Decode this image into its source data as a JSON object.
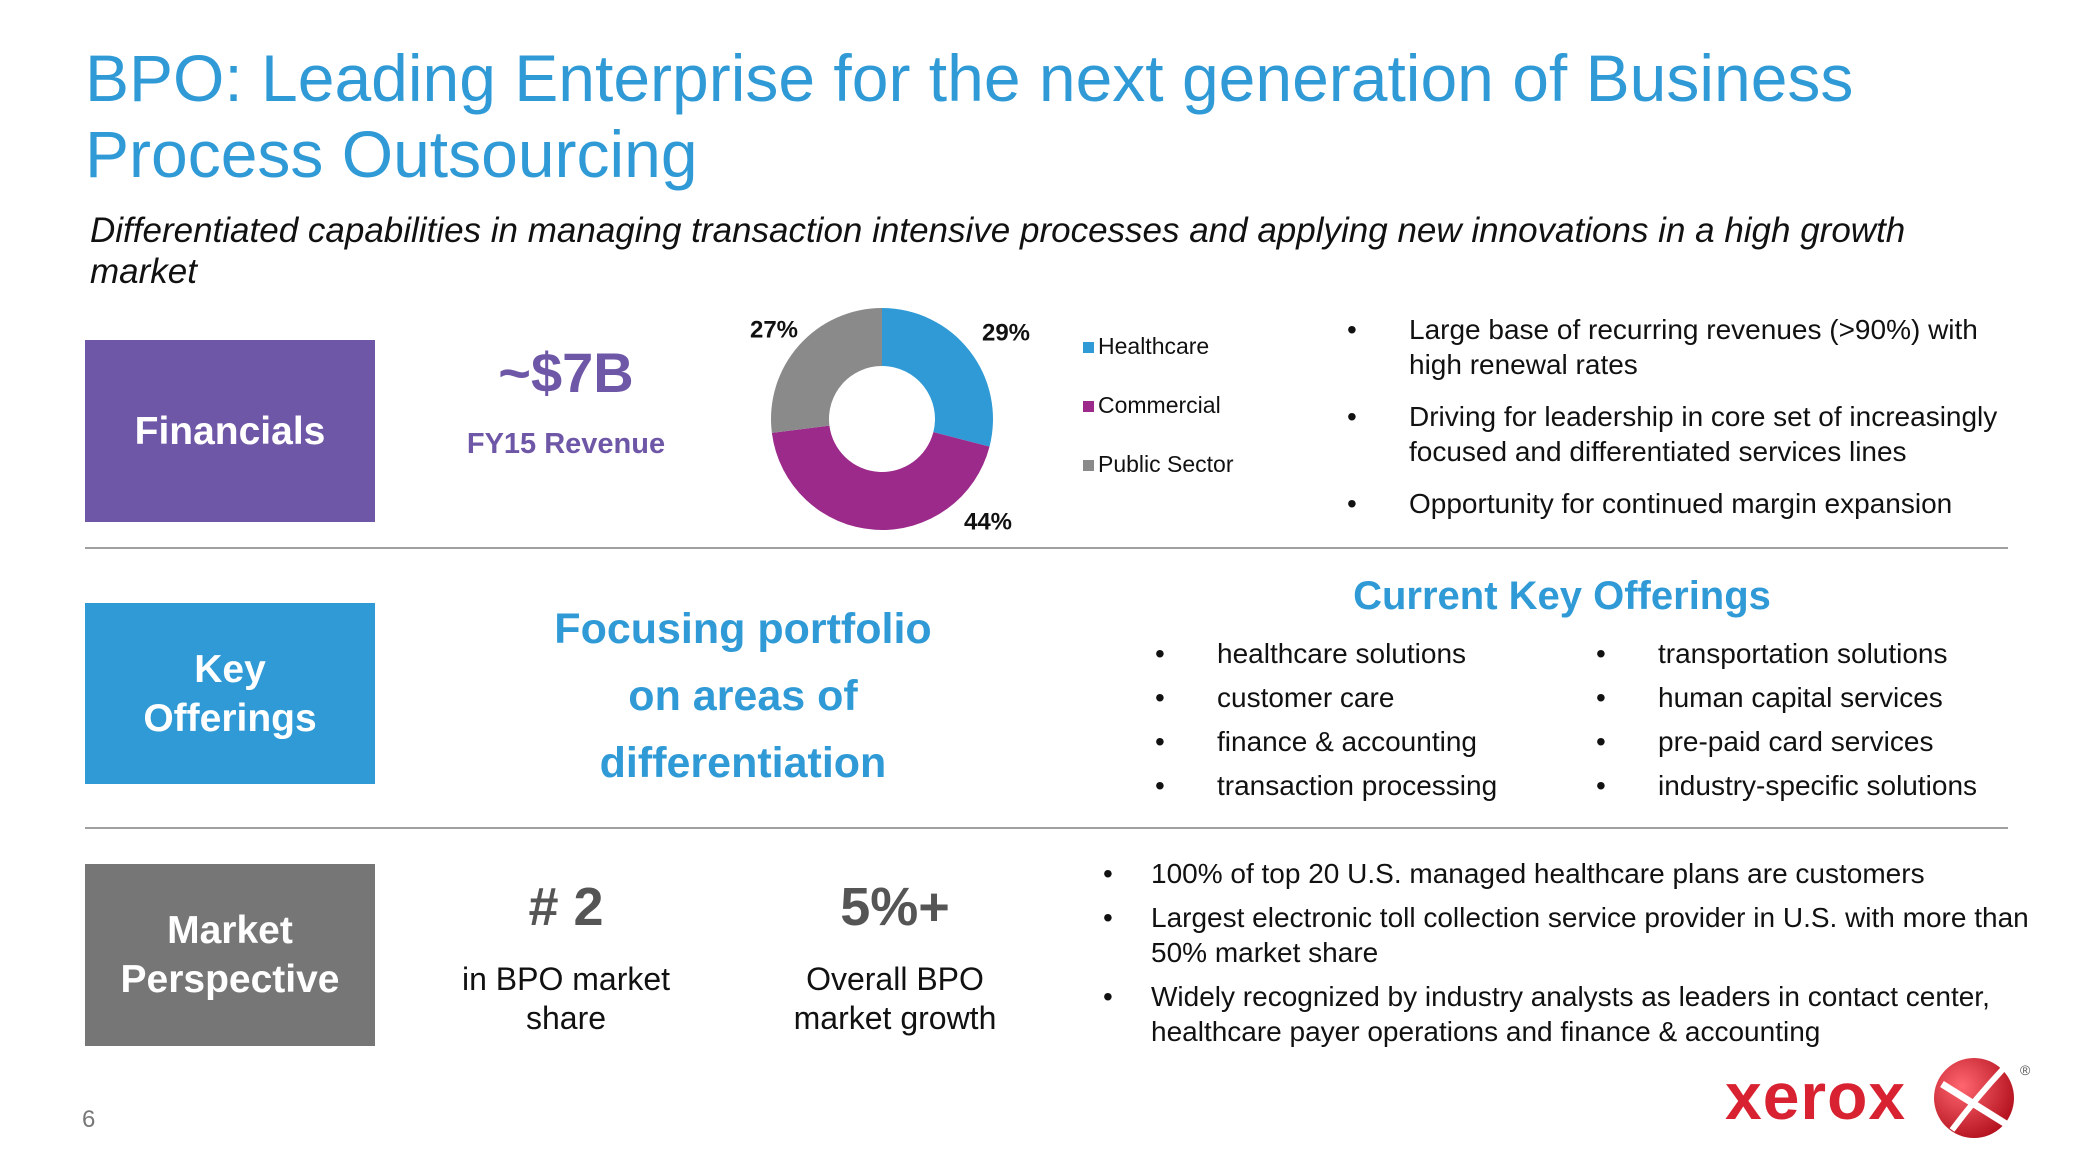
{
  "header": {
    "title": "BPO: Leading Enterprise for the next generation of Business Process Outsourcing",
    "subtitle": "Differentiated capabilities in managing transaction intensive processes and applying new innovations in a high growth market"
  },
  "sections": [
    {
      "label": "Financials"
    },
    {
      "label": "Key Offerings"
    },
    {
      "label": "Market Perspective"
    }
  ],
  "financials": {
    "figure": "~$7B",
    "caption": "FY15 Revenue",
    "bullets": [
      "Large base of recurring revenues (>90%) with high renewal rates",
      "Driving for leadership in core set of increasingly focused and differentiated services lines",
      "Opportunity for continued margin expansion"
    ]
  },
  "chart_data": {
    "type": "donut",
    "categories": [
      "Healthcare",
      "Commercial",
      "Public Sector"
    ],
    "values": [
      29,
      44,
      27
    ],
    "value_labels": [
      "29%",
      "44%",
      "27%"
    ],
    "colors": [
      "#2f9ad6",
      "#9b2a8a",
      "#8a8a8a"
    ]
  },
  "offerings": {
    "focus": "Focusing portfolio on areas of differentiation",
    "heading": "Current Key Offerings",
    "columns": [
      [
        "healthcare solutions",
        "customer care",
        "finance & accounting",
        "transaction processing"
      ],
      [
        "transportation solutions",
        "human capital services",
        "pre-paid card services",
        "industry-specific solutions"
      ]
    ]
  },
  "market": {
    "rank": {
      "figure": "# 2",
      "caption": "in BPO market share"
    },
    "growth": {
      "figure": "5%+",
      "caption": "Overall BPO market growth"
    },
    "bullets": [
      "100% of top 20 U.S. managed healthcare plans are customers",
      "Largest electronic toll collection service provider in U.S. with more than 50% market share",
      "Widely recognized by industry analysts as leaders in contact center, healthcare payer operations and finance & accounting"
    ]
  },
  "footer": {
    "page_number": "6",
    "logo": "xerox",
    "registered": "®"
  }
}
